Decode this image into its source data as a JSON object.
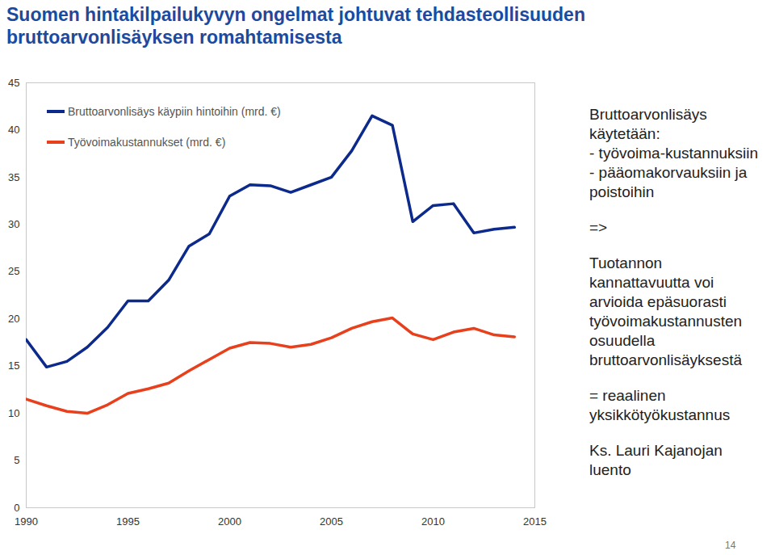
{
  "chart_data": {
    "type": "line",
    "title": "Suomen hintakilpailukyvyn ongelmat johtuvat tehdasteollisuuden bruttoarvonlisäyksen romahtamisesta",
    "x": [
      1990,
      1991,
      1992,
      1993,
      1994,
      1995,
      1996,
      1997,
      1998,
      1999,
      2000,
      2001,
      2002,
      2003,
      2004,
      2005,
      2006,
      2007,
      2008,
      2009,
      2010,
      2011,
      2012,
      2013,
      2014
    ],
    "series": [
      {
        "name": "Bruttoarvonlisäys käypiin hintoihin (mrd. €)",
        "color": "#0c2a8c",
        "values": [
          17.8,
          14.9,
          15.5,
          17.0,
          19.1,
          21.9,
          21.9,
          24.1,
          27.7,
          29.0,
          33.0,
          34.2,
          34.1,
          33.4,
          34.2,
          35.0,
          37.8,
          41.5,
          40.5,
          30.3,
          32.0,
          32.2,
          29.1,
          29.5,
          29.7
        ]
      },
      {
        "name": "Työvoimakustannukset (mrd. €)",
        "color": "#e8401c",
        "values": [
          11.5,
          10.8,
          10.2,
          10.0,
          10.9,
          12.1,
          12.6,
          13.2,
          14.5,
          15.7,
          16.9,
          17.5,
          17.4,
          17.0,
          17.3,
          18.0,
          19.0,
          19.7,
          20.1,
          18.4,
          17.8,
          18.6,
          19.0,
          18.3,
          18.1
        ]
      }
    ],
    "xlim": [
      1990,
      2015
    ],
    "xticks": [
      1990,
      1995,
      2000,
      2005,
      2010,
      2015
    ],
    "ylim": [
      0,
      45
    ],
    "yticks": [
      0,
      5,
      10,
      15,
      20,
      25,
      30,
      35,
      40,
      45
    ],
    "grid": false,
    "legend": "top-left",
    "annotations": [
      [
        "Bruttoarvonlisäys",
        "käytetään:",
        "- työvoima-kustannuksiin",
        "- pääomakorvauksiin ja",
        "poistoihin"
      ],
      [
        "=>"
      ],
      [
        "Tuotannon",
        "kannattavuutta voi",
        "arvioida epäsuorasti",
        "työvoimakustannusten",
        "osuudella",
        "bruttoarvonlisäyksestä"
      ],
      [
        "= reaalinen",
        "yksikkötyökustannus"
      ],
      [
        "Ks. Lauri Kajanojan",
        "luento"
      ]
    ],
    "footer": "14"
  }
}
